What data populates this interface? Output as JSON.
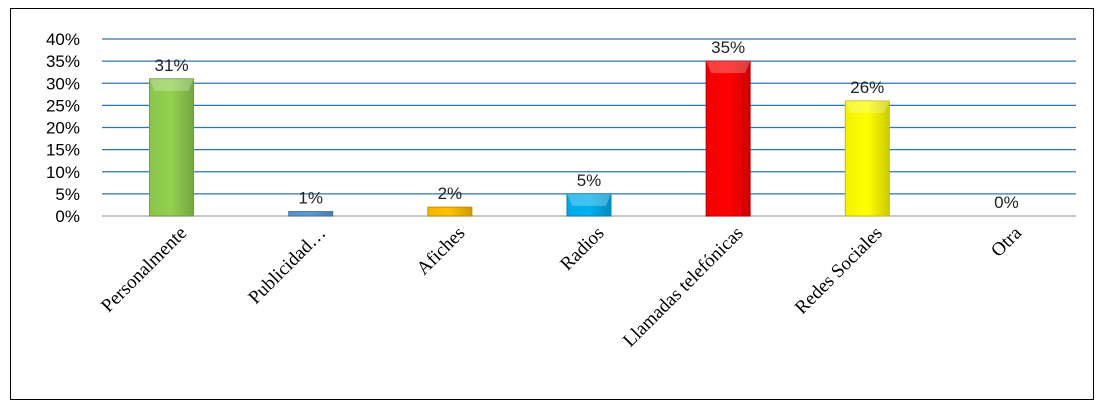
{
  "chart_data": {
    "type": "bar",
    "categories": [
      "Personalmente",
      "Publicidad…",
      "Afiches",
      "Radios",
      "Llamadas telefónicas",
      "Redes Sociales",
      "Otra"
    ],
    "values": [
      31,
      1,
      2,
      5,
      35,
      26,
      0
    ],
    "data_labels": [
      "31%",
      "1%",
      "2%",
      "5%",
      "35%",
      "26%",
      "0%"
    ],
    "colors": [
      "#92d050",
      "#5b9bd5",
      "#ffc000",
      "#00b0f0",
      "#ff0000",
      "#ffff00",
      "#a5a5a5"
    ],
    "y_ticks": [
      "0%",
      "5%",
      "10%",
      "15%",
      "20%",
      "25%",
      "30%",
      "35%",
      "40%"
    ],
    "ylim": [
      0,
      40
    ],
    "grid": true,
    "grid_color": "#2e75b6",
    "title": "",
    "xlabel": "",
    "ylabel": ""
  }
}
